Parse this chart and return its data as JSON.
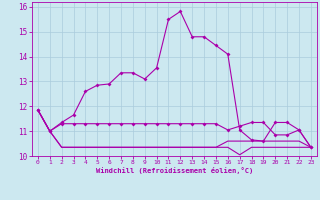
{
  "xlabel": "Windchill (Refroidissement éolien,°C)",
  "background_color": "#cce8f0",
  "grid_color": "#aaccdd",
  "line_color": "#aa00aa",
  "xlim": [
    -0.5,
    23.5
  ],
  "ylim": [
    10,
    16.2
  ],
  "yticks": [
    10,
    11,
    12,
    13,
    14,
    15,
    16
  ],
  "xticks": [
    0,
    1,
    2,
    3,
    4,
    5,
    6,
    7,
    8,
    9,
    10,
    11,
    12,
    13,
    14,
    15,
    16,
    17,
    18,
    19,
    20,
    21,
    22,
    23
  ],
  "series1": [
    11.85,
    11.0,
    11.35,
    11.65,
    12.6,
    12.85,
    12.9,
    13.35,
    13.35,
    13.1,
    13.55,
    15.5,
    15.82,
    14.8,
    14.8,
    14.45,
    14.1,
    11.05,
    10.65,
    10.6,
    11.35,
    11.35,
    11.05,
    10.35
  ],
  "series2": [
    11.85,
    11.0,
    11.3,
    11.3,
    11.3,
    11.3,
    11.3,
    11.3,
    11.3,
    11.3,
    11.3,
    11.3,
    11.3,
    11.3,
    11.3,
    11.3,
    11.05,
    11.2,
    11.35,
    11.35,
    10.85,
    10.85,
    11.05,
    10.35
  ],
  "series3": [
    11.85,
    11.0,
    10.35,
    10.35,
    10.35,
    10.35,
    10.35,
    10.35,
    10.35,
    10.35,
    10.35,
    10.35,
    10.35,
    10.35,
    10.35,
    10.35,
    10.35,
    10.05,
    10.35,
    10.35,
    10.35,
    10.35,
    10.35,
    10.35
  ],
  "series4": [
    11.85,
    11.0,
    10.35,
    10.35,
    10.35,
    10.35,
    10.35,
    10.35,
    10.35,
    10.35,
    10.35,
    10.35,
    10.35,
    10.35,
    10.35,
    10.35,
    10.6,
    10.6,
    10.6,
    10.6,
    10.6,
    10.6,
    10.6,
    10.35
  ]
}
